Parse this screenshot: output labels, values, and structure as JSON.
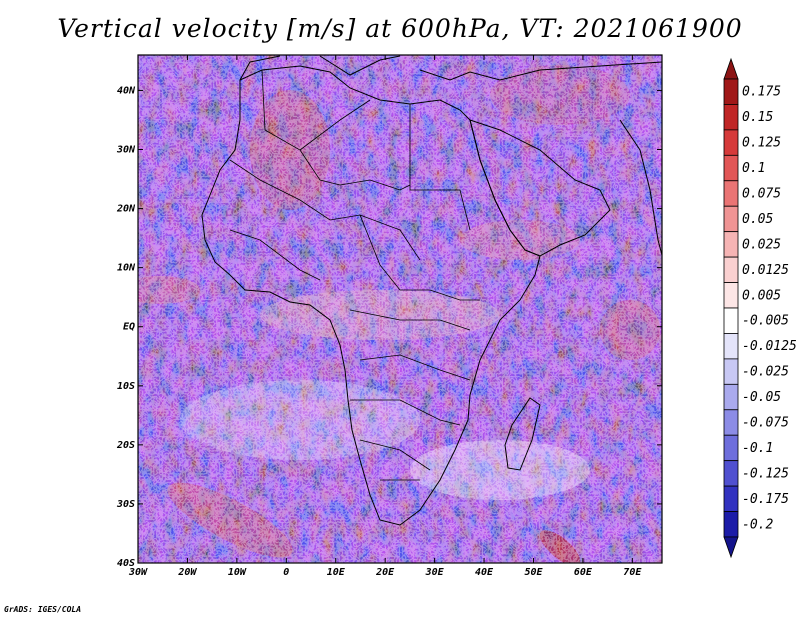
{
  "title": "Vertical velocity [m/s] at 600hPa, VT: 2021061900",
  "credit": "GrADS: IGES/COLA",
  "map": {
    "lon_range": [
      -30,
      76
    ],
    "lat_range": [
      -40,
      46
    ],
    "lon_ticks": [
      {
        "value": -30,
        "label": "30W"
      },
      {
        "value": -20,
        "label": "20W"
      },
      {
        "value": -10,
        "label": "10W"
      },
      {
        "value": 0,
        "label": "0"
      },
      {
        "value": 10,
        "label": "10E"
      },
      {
        "value": 20,
        "label": "20E"
      },
      {
        "value": 30,
        "label": "30E"
      },
      {
        "value": 40,
        "label": "40E"
      },
      {
        "value": 50,
        "label": "50E"
      },
      {
        "value": 60,
        "label": "60E"
      },
      {
        "value": 70,
        "label": "70E"
      }
    ],
    "lat_ticks": [
      {
        "value": 40,
        "label": "40N"
      },
      {
        "value": 30,
        "label": "30N"
      },
      {
        "value": 20,
        "label": "20N"
      },
      {
        "value": 10,
        "label": "10N"
      },
      {
        "value": 0,
        "label": "EQ"
      },
      {
        "value": -10,
        "label": "10S"
      },
      {
        "value": -20,
        "label": "20S"
      },
      {
        "value": -30,
        "label": "30S"
      },
      {
        "value": -40,
        "label": "40S"
      }
    ]
  },
  "colorbar": {
    "levels": [
      {
        "label": "0.175",
        "color": "#a01818"
      },
      {
        "label": "0.15",
        "color": "#c02626"
      },
      {
        "label": "0.125",
        "color": "#d63a3a"
      },
      {
        "label": "0.1",
        "color": "#e25656"
      },
      {
        "label": "0.075",
        "color": "#ea7474"
      },
      {
        "label": "0.05",
        "color": "#f09494"
      },
      {
        "label": "0.025",
        "color": "#f6b4b4"
      },
      {
        "label": "0.0125",
        "color": "#fad0d0"
      },
      {
        "label": "0.005",
        "color": "#fde6e6"
      },
      {
        "label": "-0.005",
        "color": "#ffffff"
      },
      {
        "label": "-0.0125",
        "color": "#e4e4fa"
      },
      {
        "label": "-0.025",
        "color": "#c8c8f4"
      },
      {
        "label": "-0.05",
        "color": "#aaaaee"
      },
      {
        "label": "-0.075",
        "color": "#8c8ce6"
      },
      {
        "label": "-0.1",
        "color": "#6e6edc"
      },
      {
        "label": "-0.125",
        "color": "#5050d0"
      },
      {
        "label": "-0.175",
        "color": "#3232c0"
      },
      {
        "label": "-0.2",
        "color": "#1c1ca8"
      }
    ],
    "top_arrow_color": "#8c1414",
    "bottom_arrow_color": "#14148c"
  }
}
